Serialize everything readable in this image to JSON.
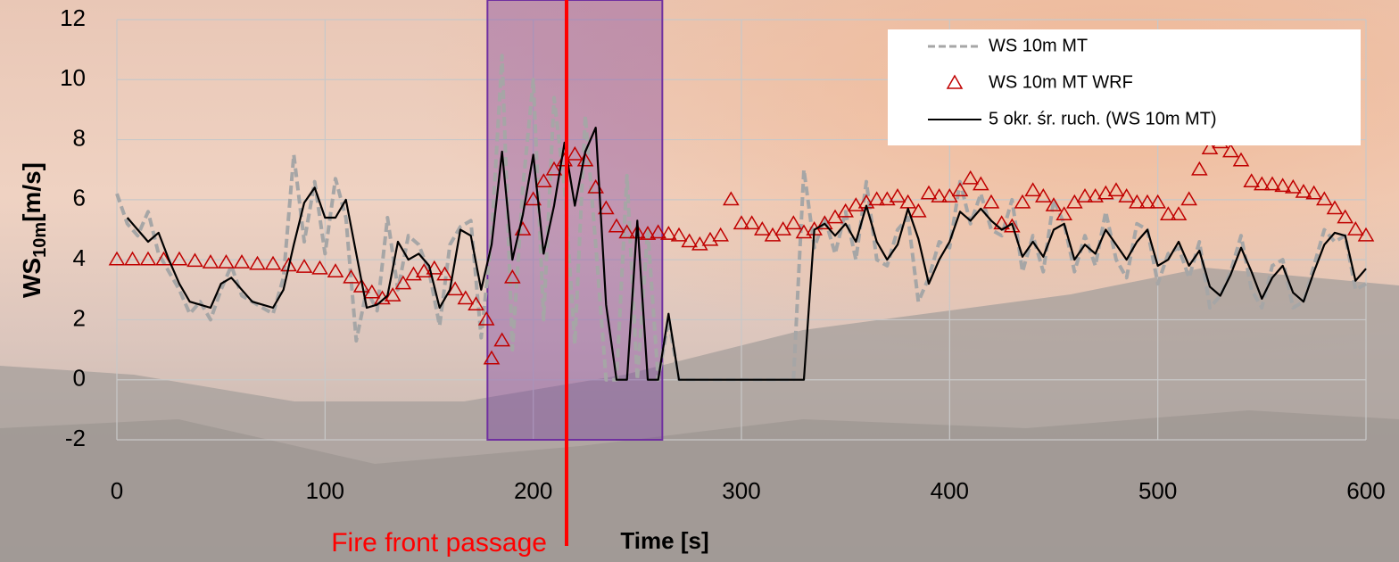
{
  "chart_data": {
    "type": "line",
    "x_label": "Time [s]",
    "y_label": [
      "WS",
      "10m",
      "[m/s]"
    ],
    "xlim": [
      0,
      600
    ],
    "xticks": [
      0,
      100,
      200,
      300,
      400,
      500,
      600
    ],
    "ylim": [
      -2,
      12
    ],
    "yticks": [
      -2,
      0,
      2,
      4,
      6,
      8,
      10,
      12
    ],
    "grid": true,
    "legend": "upper right",
    "shaded_region": {
      "x": [
        178,
        262
      ],
      "color": "#7030a0"
    },
    "annotation": {
      "text": "Fire front passage",
      "x": 216,
      "color": "#ff0000"
    },
    "series": [
      {
        "name": "WS 10m MT",
        "color": "#a6a6a6",
        "style": "dashed",
        "x": [
          0,
          5,
          10,
          15,
          20,
          25,
          30,
          35,
          40,
          45,
          50,
          55,
          60,
          65,
          70,
          75,
          80,
          85,
          90,
          95,
          100,
          105,
          110,
          115,
          120,
          125,
          130,
          135,
          140,
          145,
          150,
          155,
          160,
          165,
          170,
          175,
          180,
          185,
          190,
          195,
          200,
          205,
          210,
          215,
          220,
          225,
          230,
          235,
          240,
          245,
          250,
          255,
          260,
          265,
          270,
          275,
          280,
          285,
          290,
          295,
          300,
          305,
          310,
          315,
          320,
          325,
          330,
          335,
          340,
          345,
          350,
          355,
          360,
          365,
          370,
          375,
          380,
          385,
          390,
          395,
          400,
          405,
          410,
          415,
          420,
          425,
          430,
          435,
          440,
          445,
          450,
          455,
          460,
          465,
          470,
          475,
          480,
          485,
          490,
          495,
          500,
          505,
          510,
          515,
          520,
          525,
          530,
          535,
          540,
          545,
          550,
          555,
          560,
          565,
          570,
          575,
          580,
          585,
          590,
          595,
          600
        ],
        "values": [
          6.2,
          5.2,
          4.8,
          5.6,
          4.2,
          3.6,
          3.0,
          2.2,
          2.6,
          2.0,
          3.0,
          3.8,
          2.8,
          2.6,
          2.4,
          2.2,
          3.4,
          7.5,
          4.6,
          6.6,
          4.2,
          6.7,
          5.4,
          1.3,
          3.0,
          2.3,
          5.4,
          3.0,
          4.8,
          4.5,
          3.6,
          1.8,
          4.5,
          5.1,
          5.3,
          1.4,
          4.8,
          10.8,
          1.0,
          6.4,
          10.0,
          2.0,
          9.4,
          6.4,
          1.2,
          8.8,
          4.5,
          0,
          0,
          6.8,
          0,
          5.0,
          0,
          2.0,
          0,
          0,
          0,
          0,
          0,
          0,
          0,
          0,
          0,
          0,
          0,
          0,
          7.0,
          4.4,
          5.4,
          4.2,
          5.6,
          4.0,
          6.6,
          4.0,
          3.8,
          5.0,
          5.4,
          2.6,
          3.4,
          4.6,
          4.4,
          6.6,
          5.2,
          6.2,
          5.0,
          4.8,
          6.0,
          3.6,
          4.8,
          3.6,
          6.0,
          5.2,
          3.6,
          4.8,
          3.8,
          5.6,
          4.0,
          3.4,
          5.2,
          5.0,
          3.2,
          4.2,
          4.4,
          3.4,
          4.6,
          2.4,
          2.8,
          3.6,
          4.8,
          3.0,
          2.4,
          3.8,
          4.0,
          2.4,
          2.6,
          3.8,
          5.0,
          4.6,
          4.8,
          3.0,
          3.2
        ]
      },
      {
        "name": "WS 10m MT WRF",
        "color": "#c00000",
        "style": "triangle",
        "x": [
          0,
          7.5,
          15,
          22.5,
          30,
          37.5,
          45,
          52.5,
          60,
          67.5,
          75,
          82.5,
          90,
          97.5,
          105,
          112.5,
          117.5,
          122.5,
          127.5,
          132.5,
          137.5,
          142.5,
          147.5,
          152.5,
          157.5,
          162.5,
          167.5,
          172.5,
          177.5,
          180,
          185,
          190,
          195,
          200,
          205,
          210,
          215,
          220,
          225,
          230,
          235,
          240,
          245,
          250,
          255,
          260,
          265,
          270,
          275,
          280,
          285,
          290,
          295,
          300,
          305,
          310,
          315,
          320,
          325,
          330,
          335,
          340,
          345,
          350,
          355,
          360,
          365,
          370,
          375,
          380,
          385,
          390,
          395,
          400,
          405,
          410,
          415,
          420,
          425,
          430,
          435,
          440,
          445,
          450,
          455,
          460,
          465,
          470,
          475,
          480,
          485,
          490,
          495,
          500,
          505,
          510,
          515,
          520,
          525,
          530,
          535,
          540,
          545,
          550,
          555,
          560,
          565,
          570,
          575,
          580,
          585,
          590,
          595,
          600
        ],
        "values": [
          4.0,
          4.0,
          4.0,
          4.0,
          4.0,
          3.95,
          3.9,
          3.9,
          3.9,
          3.85,
          3.85,
          3.8,
          3.75,
          3.7,
          3.6,
          3.4,
          3.1,
          2.9,
          2.7,
          2.8,
          3.2,
          3.5,
          3.6,
          3.7,
          3.5,
          3.0,
          2.7,
          2.5,
          2.0,
          0.7,
          1.3,
          3.4,
          5.0,
          6.0,
          6.6,
          7.0,
          7.3,
          7.5,
          7.3,
          6.4,
          5.7,
          5.1,
          4.9,
          4.9,
          4.85,
          4.9,
          4.85,
          4.8,
          4.6,
          4.5,
          4.65,
          4.8,
          6.0,
          5.2,
          5.2,
          5.0,
          4.8,
          5.0,
          5.2,
          4.9,
          5.0,
          5.2,
          5.4,
          5.6,
          5.8,
          5.9,
          6.0,
          6.0,
          6.1,
          5.9,
          5.6,
          6.2,
          6.1,
          6.1,
          6.3,
          6.7,
          6.5,
          5.9,
          5.2,
          5.1,
          5.9,
          6.3,
          6.1,
          5.8,
          5.5,
          5.9,
          6.1,
          6.1,
          6.2,
          6.3,
          6.1,
          5.9,
          5.9,
          5.9,
          5.5,
          5.5,
          6.0,
          7.0,
          7.7,
          7.9,
          7.6,
          7.3,
          6.6,
          6.5,
          6.5,
          6.45,
          6.4,
          6.25,
          6.2,
          6.0,
          5.7,
          5.4,
          5.0,
          4.8
        ]
      },
      {
        "name": "5 okr. śr. ruch. (WS 10m MT)",
        "color": "#000000",
        "style": "solid",
        "x": [
          5,
          10,
          15,
          20,
          25,
          30,
          35,
          40,
          45,
          50,
          55,
          60,
          65,
          70,
          75,
          80,
          85,
          90,
          95,
          100,
          105,
          110,
          115,
          120,
          125,
          130,
          135,
          140,
          145,
          150,
          155,
          160,
          165,
          170,
          175,
          180,
          185,
          190,
          195,
          200,
          205,
          210,
          215,
          220,
          225,
          230,
          235,
          240,
          245,
          250,
          255,
          260,
          265,
          270,
          275,
          280,
          285,
          290,
          295,
          300,
          305,
          310,
          315,
          320,
          325,
          330,
          335,
          340,
          345,
          350,
          355,
          360,
          365,
          370,
          375,
          380,
          385,
          390,
          395,
          400,
          405,
          410,
          415,
          420,
          425,
          430,
          435,
          440,
          445,
          450,
          455,
          460,
          465,
          470,
          475,
          480,
          485,
          490,
          495,
          500,
          505,
          510,
          515,
          520,
          525,
          530,
          535,
          540,
          545,
          550,
          555,
          560,
          565,
          570,
          575,
          580,
          585,
          590,
          595,
          600
        ],
        "values": [
          5.4,
          5.0,
          4.6,
          4.9,
          4.0,
          3.2,
          2.6,
          2.5,
          2.4,
          3.2,
          3.4,
          3.0,
          2.6,
          2.5,
          2.4,
          3.0,
          4.5,
          5.9,
          6.4,
          5.4,
          5.4,
          6.0,
          4.2,
          2.4,
          2.5,
          2.8,
          4.6,
          4.0,
          4.2,
          3.8,
          2.4,
          3.0,
          5.0,
          4.8,
          3.0,
          4.5,
          7.6,
          4.0,
          5.5,
          7.5,
          4.2,
          5.8,
          7.9,
          5.8,
          7.6,
          8.4,
          2.5,
          0,
          0,
          5.3,
          0,
          0,
          2.2,
          0,
          0,
          0,
          0,
          0,
          0,
          0,
          0,
          0,
          0,
          0,
          0,
          0,
          5.0,
          5.2,
          4.8,
          5.2,
          4.6,
          5.8,
          4.6,
          4.0,
          4.5,
          5.7,
          4.7,
          3.2,
          4.0,
          4.6,
          5.6,
          5.3,
          5.7,
          5.3,
          5.0,
          5.2,
          4.1,
          4.6,
          4.1,
          5.0,
          5.2,
          4.0,
          4.5,
          4.2,
          5.0,
          4.5,
          4.0,
          4.6,
          5.0,
          3.8,
          4.0,
          4.6,
          3.8,
          4.3,
          3.1,
          2.8,
          3.5,
          4.4,
          3.6,
          2.7,
          3.4,
          3.8,
          2.9,
          2.6,
          3.6,
          4.5,
          4.9,
          4.8,
          3.3,
          3.7
        ]
      }
    ]
  }
}
